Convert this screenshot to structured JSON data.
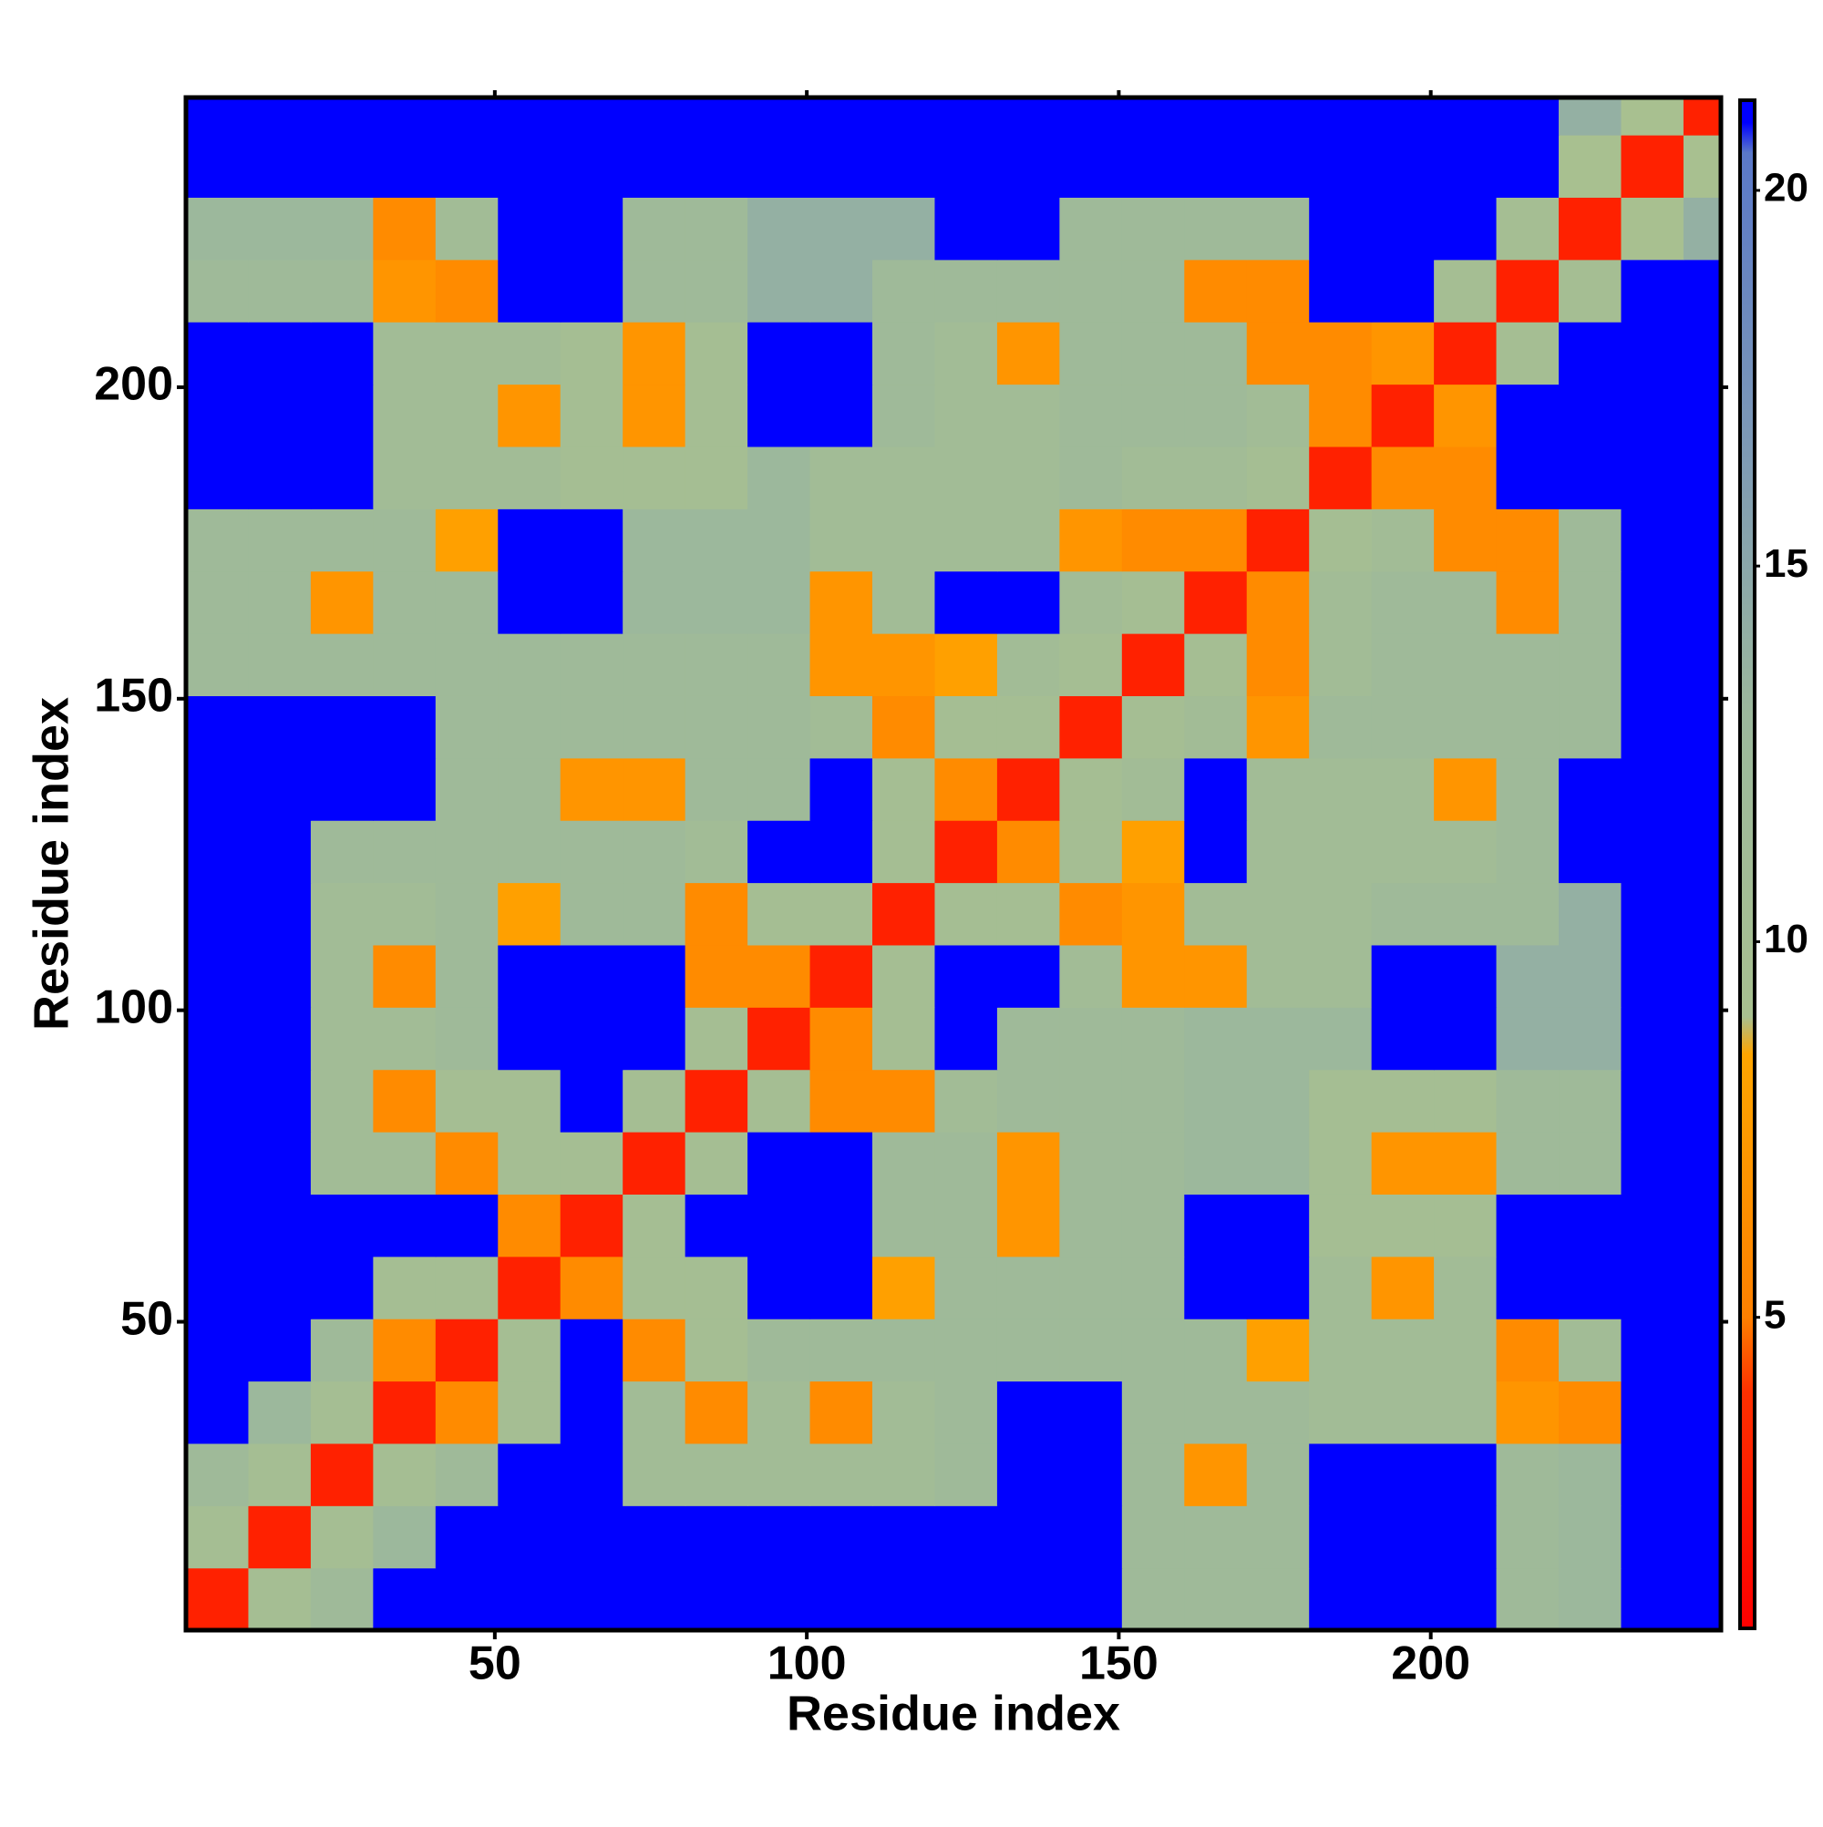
{
  "chart_data": {
    "type": "heatmap",
    "x_label": "Residue index",
    "y_label": "Residue index",
    "bins": [
      0.5,
      10.5,
      20.5,
      30.5,
      40.5,
      50.5,
      60.5,
      70.5,
      80.5,
      90.5,
      100.5,
      110.5,
      120.5,
      130.5,
      140.5,
      150.5,
      160.5,
      170.5,
      180.5,
      190.5,
      200.5,
      210.5,
      220.5,
      230.5,
      240.5,
      246.5
    ],
    "xlim": [
      0.5,
      246.5
    ],
    "ylim": [
      0.5,
      246.5
    ],
    "xticks": [
      50,
      100,
      150,
      200
    ],
    "yticks": [
      50,
      100,
      150,
      200
    ],
    "zlim": [
      0.86,
      21.2
    ],
    "zticks": [
      5,
      10,
      15,
      20
    ],
    "colorscale": [
      {
        "value": 0.86,
        "color": "#ff0000"
      },
      {
        "value": 4,
        "color": "#ff3000"
      },
      {
        "value": 5,
        "color": "#ff8000"
      },
      {
        "value": 8.5,
        "color": "#ffa500"
      },
      {
        "value": 9,
        "color": "#a8c090"
      },
      {
        "value": 13,
        "color": "#9cb89c"
      },
      {
        "value": 17,
        "color": "#7a96b8"
      },
      {
        "value": 20.5,
        "color": "#5a78c8"
      },
      {
        "value": 20.9,
        "color": "#0000ff"
      }
    ],
    "z": [
      [
        3,
        10,
        12,
        21,
        21,
        21,
        21,
        21,
        21,
        21,
        21,
        21,
        21,
        21,
        21,
        12,
        12,
        12,
        21,
        21,
        21,
        12,
        13,
        21,
        21
      ],
      [
        10,
        3,
        10,
        13,
        21,
        21,
        21,
        21,
        21,
        21,
        21,
        21,
        21,
        21,
        21,
        12,
        12,
        12,
        21,
        21,
        21,
        12,
        13,
        21,
        21
      ],
      [
        12,
        10,
        3,
        10,
        12,
        21,
        21,
        11,
        11,
        11,
        11,
        11,
        12,
        21,
        21,
        12,
        7,
        12,
        21,
        21,
        21,
        12,
        13,
        21,
        21
      ],
      [
        21,
        13,
        10,
        3,
        6,
        10,
        21,
        11,
        6,
        11,
        6,
        11,
        12,
        21,
        21,
        12,
        12,
        12,
        11,
        11,
        11,
        7,
        6,
        21,
        21
      ],
      [
        21,
        21,
        12,
        6,
        3,
        10,
        21,
        6,
        10,
        12,
        12,
        12,
        12,
        12,
        12,
        12,
        12,
        8,
        11,
        11,
        11,
        6,
        11,
        21,
        21
      ],
      [
        21,
        21,
        21,
        10,
        10,
        3,
        6,
        10,
        10,
        21,
        21,
        8,
        12,
        12,
        12,
        12,
        21,
        21,
        11,
        7,
        11,
        21,
        21,
        21,
        21
      ],
      [
        21,
        21,
        21,
        21,
        21,
        6,
        3,
        10,
        21,
        21,
        21,
        12,
        12,
        7,
        12,
        12,
        21,
        21,
        10,
        10,
        10,
        21,
        21,
        21,
        21
      ],
      [
        21,
        21,
        11,
        11,
        6,
        10,
        10,
        3,
        10,
        21,
        21,
        12,
        12,
        7,
        12,
        12,
        13,
        13,
        10,
        7,
        7,
        12,
        12,
        21,
        21
      ],
      [
        21,
        21,
        11,
        6,
        10,
        10,
        21,
        10,
        3,
        10,
        6,
        6,
        11,
        12,
        12,
        12,
        13,
        13,
        10,
        10,
        10,
        12,
        12,
        21,
        21
      ],
      [
        21,
        21,
        11,
        11,
        12,
        21,
        21,
        21,
        10,
        3,
        6,
        10,
        21,
        12,
        12,
        12,
        13,
        13,
        13,
        21,
        21,
        14,
        14,
        21,
        21
      ],
      [
        21,
        21,
        11,
        6,
        12,
        21,
        21,
        21,
        6,
        6,
        3,
        10,
        21,
        21,
        11,
        7,
        7,
        11,
        11,
        21,
        21,
        14,
        14,
        21,
        21
      ],
      [
        21,
        21,
        11,
        11,
        12,
        8,
        12,
        12,
        6,
        10,
        10,
        3,
        10,
        10,
        6,
        7,
        11,
        11,
        11,
        12,
        12,
        12,
        14,
        21,
        21
      ],
      [
        21,
        21,
        12,
        12,
        12,
        12,
        12,
        12,
        11,
        21,
        21,
        10,
        3,
        6,
        10,
        8,
        21,
        11,
        11,
        11,
        11,
        12,
        21,
        21,
        21
      ],
      [
        21,
        21,
        21,
        21,
        12,
        12,
        7,
        7,
        12,
        12,
        21,
        10,
        6,
        3,
        10,
        11,
        21,
        11,
        11,
        11,
        7,
        12,
        21,
        21,
        21
      ],
      [
        21,
        21,
        21,
        21,
        12,
        12,
        12,
        12,
        12,
        12,
        11,
        6,
        10,
        10,
        3,
        10,
        11,
        7,
        12,
        12,
        12,
        12,
        12,
        21,
        21
      ],
      [
        12,
        12,
        12,
        12,
        12,
        12,
        12,
        12,
        12,
        12,
        7,
        7,
        8,
        11,
        10,
        3,
        10,
        6,
        11,
        12,
        12,
        12,
        12,
        21,
        21
      ],
      [
        12,
        12,
        7,
        12,
        12,
        21,
        21,
        13,
        13,
        13,
        7,
        11,
        21,
        21,
        11,
        10,
        3,
        6,
        11,
        12,
        12,
        6,
        12,
        21,
        21
      ],
      [
        12,
        12,
        12,
        12,
        8,
        21,
        21,
        13,
        13,
        13,
        11,
        11,
        11,
        11,
        7,
        6,
        6,
        3,
        10,
        11,
        6,
        6,
        12,
        21,
        21
      ],
      [
        21,
        21,
        21,
        11,
        11,
        11,
        10,
        10,
        10,
        13,
        11,
        11,
        11,
        11,
        12,
        11,
        11,
        10,
        3,
        6,
        6,
        21,
        21,
        21,
        21
      ],
      [
        21,
        21,
        21,
        11,
        11,
        7,
        10,
        7,
        10,
        21,
        21,
        12,
        11,
        11,
        12,
        12,
        12,
        11,
        6,
        3,
        7,
        21,
        21,
        21,
        21
      ],
      [
        21,
        21,
        21,
        11,
        11,
        11,
        10,
        7,
        10,
        21,
        21,
        12,
        11,
        7,
        12,
        12,
        12,
        6,
        6,
        7,
        3,
        10,
        21,
        21,
        21
      ],
      [
        12,
        12,
        12,
        7,
        6,
        21,
        21,
        12,
        12,
        14,
        14,
        12,
        12,
        12,
        12,
        12,
        6,
        6,
        21,
        21,
        10,
        3,
        10,
        21,
        21
      ],
      [
        13,
        13,
        13,
        6,
        11,
        21,
        21,
        12,
        12,
        14,
        14,
        14,
        21,
        21,
        12,
        12,
        12,
        12,
        21,
        21,
        21,
        10,
        3,
        9,
        14
      ],
      [
        21,
        21,
        21,
        21,
        21,
        21,
        21,
        21,
        21,
        21,
        21,
        21,
        21,
        21,
        21,
        21,
        21,
        21,
        21,
        21,
        21,
        21,
        9,
        3,
        9
      ],
      [
        21,
        21,
        21,
        21,
        21,
        21,
        21,
        21,
        21,
        21,
        21,
        21,
        21,
        21,
        21,
        21,
        21,
        21,
        21,
        21,
        21,
        21,
        14,
        9,
        3
      ]
    ]
  }
}
